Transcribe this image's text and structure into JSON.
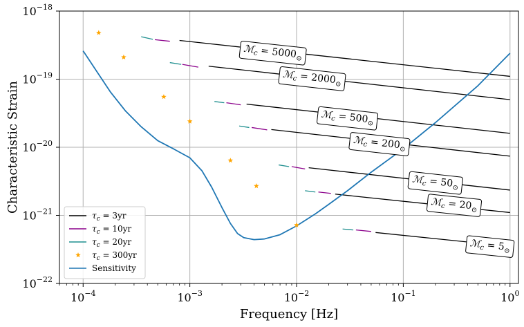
{
  "chart_data": {
    "type": "line",
    "xscale": "log",
    "yscale": "log",
    "xlim": [
      6e-05,
      1.2
    ],
    "ylim": [
      1e-22,
      1e-18
    ],
    "grid": true,
    "xlabel": "Frequency [Hz]",
    "ylabel": "Characteristic Strain",
    "x_ticks": [
      {
        "value": 0.0001,
        "base": "10",
        "exp": "−4"
      },
      {
        "value": 0.001,
        "base": "10",
        "exp": "−3"
      },
      {
        "value": 0.01,
        "base": "10",
        "exp": "−2"
      },
      {
        "value": 0.1,
        "base": "10",
        "exp": "−1"
      },
      {
        "value": 1,
        "base": "10",
        "exp": "0"
      }
    ],
    "y_ticks": [
      {
        "value": 1e-22,
        "base": "10",
        "exp": "−22"
      },
      {
        "value": 1e-21,
        "base": "10",
        "exp": "−21"
      },
      {
        "value": 1e-20,
        "base": "10",
        "exp": "−20"
      },
      {
        "value": 1e-19,
        "base": "10",
        "exp": "−19"
      },
      {
        "value": 1e-18,
        "base": "10",
        "exp": "−18"
      }
    ],
    "colors": {
      "tau3": "#000000",
      "tau10": "#8b008b",
      "tau20": "#1f8f8f",
      "tau300": "#ffa500",
      "sensitivity": "#1f77b4"
    },
    "legend": {
      "position": "lower left",
      "entries": [
        {
          "key": "tau3",
          "marker": "line",
          "label": "τ",
          "sub": "c",
          "text": " = 3yr"
        },
        {
          "key": "tau10",
          "marker": "line",
          "label": "τ",
          "sub": "c",
          "text": " = 10yr"
        },
        {
          "key": "tau20",
          "marker": "line",
          "label": "τ",
          "sub": "c",
          "text": " = 20yr"
        },
        {
          "key": "tau300",
          "marker": "star",
          "label": "τ",
          "sub": "c",
          "text": " = 300yr"
        },
        {
          "key": "sensitivity",
          "marker": "line",
          "label": "Sensitivity",
          "sub": "",
          "text": ""
        }
      ]
    },
    "sensitivity": {
      "name": "Sensitivity",
      "points": [
        [
          0.0001,
          2.6e-19
        ],
        [
          0.00013,
          1.4e-19
        ],
        [
          0.00018,
          6.5e-20
        ],
        [
          0.00025,
          3.4e-20
        ],
        [
          0.00035,
          2e-20
        ],
        [
          0.0005,
          1.25e-20
        ],
        [
          0.0007,
          9.5e-21
        ],
        [
          0.001,
          7e-21
        ],
        [
          0.0013,
          4.5e-21
        ],
        [
          0.0016,
          2.6e-21
        ],
        [
          0.002,
          1.3e-21
        ],
        [
          0.0024,
          7.6e-22
        ],
        [
          0.0028,
          5.4e-22
        ],
        [
          0.0032,
          4.7e-22
        ],
        [
          0.004,
          4.4e-22
        ],
        [
          0.005,
          4.5e-22
        ],
        [
          0.007,
          5.2e-22
        ],
        [
          0.01,
          7e-22
        ],
        [
          0.015,
          1.05e-21
        ],
        [
          0.02,
          1.45e-21
        ],
        [
          0.03,
          2.3e-21
        ],
        [
          0.05,
          4.3e-21
        ],
        [
          0.1,
          9.5e-21
        ],
        [
          0.2,
          2.3e-20
        ],
        [
          0.5,
          8e-20
        ],
        [
          1.0,
          2.4e-19
        ]
      ]
    },
    "tau300_points": [
      [
        0.00014,
        4.8e-19
      ],
      [
        0.00024,
        2.1e-19
      ],
      [
        0.00057,
        5.5e-20
      ],
      [
        0.001,
        2.4e-20
      ],
      [
        0.0024,
        6.4e-21
      ],
      [
        0.0042,
        2.7e-21
      ],
      [
        0.01,
        7.2e-22
      ]
    ],
    "chirp_tracks": [
      {
        "mass_label": "5000",
        "tau20": [
          [
            0.00035,
            4.2e-19
          ],
          [
            0.00045,
            3.85e-19
          ]
        ],
        "tau10": [
          [
            0.00047,
            3.8e-19
          ],
          [
            0.00065,
            3.6e-19
          ]
        ],
        "tau3": [
          [
            0.0008,
            3.7e-19
          ],
          [
            1.0,
            1.1e-19
          ]
        ],
        "label_x": 0.006,
        "label_y": 2.5e-19
      },
      {
        "mass_label": "2000",
        "tau20": [
          [
            0.00065,
            1.75e-19
          ],
          [
            0.00083,
            1.65e-19
          ]
        ],
        "tau10": [
          [
            0.00085,
            1.65e-19
          ],
          [
            0.0012,
            1.5e-19
          ]
        ],
        "tau3": [
          [
            0.0015,
            1.55e-19
          ],
          [
            1.0,
            5e-20
          ]
        ],
        "label_x": 0.014,
        "label_y": 1.05e-19
      },
      {
        "mass_label": "500",
        "tau20": [
          [
            0.0017,
            4.7e-20
          ],
          [
            0.0021,
            4.5e-20
          ]
        ],
        "tau10": [
          [
            0.0022,
            4.5e-20
          ],
          [
            0.003,
            4.2e-20
          ]
        ],
        "tau3": [
          [
            0.0034,
            4.3e-20
          ],
          [
            1.0,
            1.6e-20
          ]
        ],
        "label_x": 0.03,
        "label_y": 2.75e-20
      },
      {
        "mass_label": "200",
        "tau20": [
          [
            0.0029,
            2.05e-20
          ],
          [
            0.0036,
            1.95e-20
          ]
        ],
        "tau10": [
          [
            0.0038,
            1.95e-20
          ],
          [
            0.0053,
            1.8e-20
          ]
        ],
        "tau3": [
          [
            0.0058,
            1.82e-20
          ],
          [
            1.0,
            7.4e-21
          ]
        ],
        "label_x": 0.06,
        "label_y": 1.15e-20
      },
      {
        "mass_label": "50",
        "tau20": [
          [
            0.0068,
            5.5e-21
          ],
          [
            0.0085,
            5.2e-21
          ]
        ],
        "tau10": [
          [
            0.009,
            5.2e-21
          ],
          [
            0.012,
            4.8e-21
          ]
        ],
        "tau3": [
          [
            0.013,
            5e-21
          ],
          [
            1.0,
            2.35e-21
          ]
        ],
        "label_x": 0.2,
        "label_y": 3.1e-21
      },
      {
        "mass_label": "20",
        "tau20": [
          [
            0.012,
            2.3e-21
          ],
          [
            0.015,
            2.2e-21
          ]
        ],
        "tau10": [
          [
            0.016,
            2.2e-21
          ],
          [
            0.021,
            2.1e-21
          ]
        ],
        "tau3": [
          [
            0.023,
            2.05e-21
          ],
          [
            1.0,
            1.1e-21
          ]
        ],
        "label_x": 0.3,
        "label_y": 1.45e-21
      },
      {
        "mass_label": "5",
        "tau20": [
          [
            0.027,
            6.3e-22
          ],
          [
            0.034,
            6.1e-22
          ]
        ],
        "tau10": [
          [
            0.036,
            6.1e-22
          ],
          [
            0.05,
            5.8e-22
          ]
        ],
        "tau3": [
          [
            0.055,
            5.6e-22
          ],
          [
            1.0,
            3.5e-22
          ]
        ],
        "label_x": 0.65,
        "label_y": 3.6e-22
      }
    ],
    "mc_label": {
      "symbol": "ℳ",
      "sub": "c",
      "eq": " = ",
      "suffix_sub": "⊙"
    }
  }
}
